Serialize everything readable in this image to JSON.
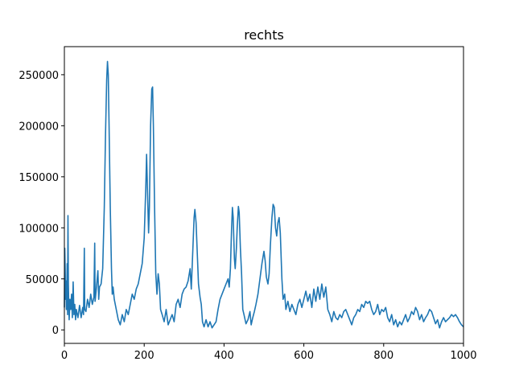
{
  "chart_data": {
    "type": "line",
    "title": "rechts",
    "xlabel": "",
    "ylabel": "",
    "xlim": [
      0,
      1000
    ],
    "ylim": [
      -13200,
      277500
    ],
    "xticks": [
      0,
      200,
      400,
      600,
      800,
      1000
    ],
    "yticks": [
      0,
      50000,
      100000,
      150000,
      200000,
      250000
    ],
    "xtick_labels": [
      "0",
      "200",
      "400",
      "600",
      "800",
      "1000"
    ],
    "ytick_labels": [
      "0",
      "50000",
      "100000",
      "150000",
      "200000",
      "250000"
    ],
    "grid": false,
    "series": [
      {
        "color": "#1f77b4",
        "points": [
          [
            0,
            22000
          ],
          [
            1,
            80000
          ],
          [
            2,
            60000
          ],
          [
            3,
            30000
          ],
          [
            4,
            48000
          ],
          [
            5,
            20000
          ],
          [
            6,
            35000
          ],
          [
            7,
            65000
          ],
          [
            8,
            15000
          ],
          [
            9,
            112000
          ],
          [
            10,
            45000
          ],
          [
            11,
            25000
          ],
          [
            12,
            10000
          ],
          [
            14,
            30000
          ],
          [
            16,
            20000
          ],
          [
            18,
            35000
          ],
          [
            20,
            12000
          ],
          [
            22,
            47000
          ],
          [
            24,
            15000
          ],
          [
            26,
            25000
          ],
          [
            28,
            10000
          ],
          [
            30,
            20000
          ],
          [
            34,
            12000
          ],
          [
            38,
            24000
          ],
          [
            42,
            12000
          ],
          [
            46,
            22000
          ],
          [
            48,
            15000
          ],
          [
            50,
            80000
          ],
          [
            51,
            20000
          ],
          [
            54,
            18000
          ],
          [
            58,
            30000
          ],
          [
            62,
            22000
          ],
          [
            66,
            35000
          ],
          [
            70,
            25000
          ],
          [
            74,
            32000
          ],
          [
            76,
            85000
          ],
          [
            77,
            28000
          ],
          [
            80,
            40000
          ],
          [
            84,
            58000
          ],
          [
            86,
            30000
          ],
          [
            88,
            42000
          ],
          [
            92,
            45000
          ],
          [
            96,
            60000
          ],
          [
            100,
            120000
          ],
          [
            103,
            190000
          ],
          [
            106,
            245000
          ],
          [
            108,
            263000
          ],
          [
            110,
            250000
          ],
          [
            112,
            200000
          ],
          [
            115,
            120000
          ],
          [
            118,
            60000
          ],
          [
            120,
            35000
          ],
          [
            122,
            42000
          ],
          [
            125,
            30000
          ],
          [
            130,
            20000
          ],
          [
            135,
            10000
          ],
          [
            140,
            5000
          ],
          [
            145,
            15000
          ],
          [
            150,
            8000
          ],
          [
            155,
            20000
          ],
          [
            160,
            15000
          ],
          [
            165,
            25000
          ],
          [
            170,
            35000
          ],
          [
            175,
            30000
          ],
          [
            180,
            40000
          ],
          [
            185,
            45000
          ],
          [
            190,
            55000
          ],
          [
            195,
            65000
          ],
          [
            200,
            90000
          ],
          [
            204,
            140000
          ],
          [
            206,
            172000
          ],
          [
            208,
            140000
          ],
          [
            211,
            95000
          ],
          [
            213,
            120000
          ],
          [
            216,
            200000
          ],
          [
            219,
            236000
          ],
          [
            221,
            238000
          ],
          [
            223,
            200000
          ],
          [
            226,
            120000
          ],
          [
            229,
            55000
          ],
          [
            232,
            35000
          ],
          [
            235,
            55000
          ],
          [
            238,
            45000
          ],
          [
            241,
            20000
          ],
          [
            245,
            15000
          ],
          [
            250,
            8000
          ],
          [
            255,
            20000
          ],
          [
            260,
            5000
          ],
          [
            265,
            10000
          ],
          [
            270,
            15000
          ],
          [
            275,
            8000
          ],
          [
            280,
            25000
          ],
          [
            285,
            30000
          ],
          [
            290,
            22000
          ],
          [
            295,
            35000
          ],
          [
            300,
            40000
          ],
          [
            305,
            42000
          ],
          [
            310,
            48000
          ],
          [
            315,
            60000
          ],
          [
            318,
            40000
          ],
          [
            322,
            80000
          ],
          [
            325,
            110000
          ],
          [
            327,
            118000
          ],
          [
            330,
            105000
          ],
          [
            333,
            75000
          ],
          [
            336,
            45000
          ],
          [
            340,
            32000
          ],
          [
            343,
            25000
          ],
          [
            346,
            8000
          ],
          [
            350,
            3000
          ],
          [
            355,
            10000
          ],
          [
            360,
            3000
          ],
          [
            365,
            8000
          ],
          [
            370,
            2000
          ],
          [
            375,
            5000
          ],
          [
            380,
            8000
          ],
          [
            385,
            20000
          ],
          [
            390,
            30000
          ],
          [
            395,
            35000
          ],
          [
            400,
            40000
          ],
          [
            405,
            45000
          ],
          [
            410,
            50000
          ],
          [
            413,
            42000
          ],
          [
            416,
            60000
          ],
          [
            419,
            100000
          ],
          [
            421,
            120000
          ],
          [
            423,
            110000
          ],
          [
            426,
            70000
          ],
          [
            428,
            60000
          ],
          [
            431,
            80000
          ],
          [
            433,
            100000
          ],
          [
            436,
            121000
          ],
          [
            438,
            115000
          ],
          [
            441,
            80000
          ],
          [
            444,
            55000
          ],
          [
            447,
            20000
          ],
          [
            450,
            15000
          ],
          [
            455,
            6000
          ],
          [
            460,
            10000
          ],
          [
            465,
            18000
          ],
          [
            468,
            5000
          ],
          [
            472,
            12000
          ],
          [
            476,
            18000
          ],
          [
            480,
            25000
          ],
          [
            485,
            35000
          ],
          [
            490,
            50000
          ],
          [
            495,
            65000
          ],
          [
            500,
            77000
          ],
          [
            503,
            68000
          ],
          [
            506,
            52000
          ],
          [
            510,
            45000
          ],
          [
            513,
            55000
          ],
          [
            516,
            82000
          ],
          [
            520,
            110000
          ],
          [
            523,
            123000
          ],
          [
            526,
            120000
          ],
          [
            529,
            100000
          ],
          [
            532,
            92000
          ],
          [
            535,
            105000
          ],
          [
            538,
            110000
          ],
          [
            541,
            95000
          ],
          [
            545,
            50000
          ],
          [
            548,
            30000
          ],
          [
            552,
            35000
          ],
          [
            555,
            20000
          ],
          [
            560,
            28000
          ],
          [
            565,
            18000
          ],
          [
            570,
            25000
          ],
          [
            575,
            20000
          ],
          [
            580,
            15000
          ],
          [
            585,
            25000
          ],
          [
            590,
            30000
          ],
          [
            595,
            22000
          ],
          [
            600,
            30000
          ],
          [
            605,
            38000
          ],
          [
            610,
            28000
          ],
          [
            615,
            35000
          ],
          [
            620,
            22000
          ],
          [
            625,
            40000
          ],
          [
            630,
            28000
          ],
          [
            635,
            42000
          ],
          [
            640,
            30000
          ],
          [
            645,
            45000
          ],
          [
            650,
            32000
          ],
          [
            655,
            42000
          ],
          [
            660,
            20000
          ],
          [
            665,
            15000
          ],
          [
            670,
            8000
          ],
          [
            675,
            18000
          ],
          [
            680,
            12000
          ],
          [
            685,
            10000
          ],
          [
            690,
            15000
          ],
          [
            695,
            12000
          ],
          [
            700,
            18000
          ],
          [
            705,
            20000
          ],
          [
            710,
            15000
          ],
          [
            715,
            10000
          ],
          [
            720,
            5000
          ],
          [
            725,
            12000
          ],
          [
            730,
            15000
          ],
          [
            735,
            20000
          ],
          [
            740,
            18000
          ],
          [
            745,
            25000
          ],
          [
            750,
            22000
          ],
          [
            755,
            28000
          ],
          [
            760,
            26000
          ],
          [
            765,
            28000
          ],
          [
            770,
            20000
          ],
          [
            775,
            15000
          ],
          [
            780,
            18000
          ],
          [
            785,
            25000
          ],
          [
            790,
            15000
          ],
          [
            795,
            20000
          ],
          [
            800,
            18000
          ],
          [
            805,
            22000
          ],
          [
            810,
            12000
          ],
          [
            815,
            8000
          ],
          [
            820,
            15000
          ],
          [
            825,
            5000
          ],
          [
            830,
            10000
          ],
          [
            835,
            3000
          ],
          [
            840,
            8000
          ],
          [
            845,
            5000
          ],
          [
            850,
            10000
          ],
          [
            855,
            15000
          ],
          [
            860,
            8000
          ],
          [
            865,
            12000
          ],
          [
            870,
            18000
          ],
          [
            875,
            15000
          ],
          [
            880,
            22000
          ],
          [
            885,
            18000
          ],
          [
            890,
            10000
          ],
          [
            895,
            15000
          ],
          [
            900,
            8000
          ],
          [
            905,
            12000
          ],
          [
            910,
            15000
          ],
          [
            915,
            20000
          ],
          [
            920,
            18000
          ],
          [
            925,
            12000
          ],
          [
            930,
            6000
          ],
          [
            935,
            10000
          ],
          [
            940,
            2000
          ],
          [
            945,
            8000
          ],
          [
            950,
            12000
          ],
          [
            955,
            8000
          ],
          [
            960,
            10000
          ],
          [
            965,
            12000
          ],
          [
            970,
            15000
          ],
          [
            975,
            13000
          ],
          [
            980,
            15000
          ],
          [
            985,
            12000
          ],
          [
            990,
            8000
          ],
          [
            995,
            5000
          ],
          [
            1000,
            3000
          ]
        ]
      }
    ]
  }
}
